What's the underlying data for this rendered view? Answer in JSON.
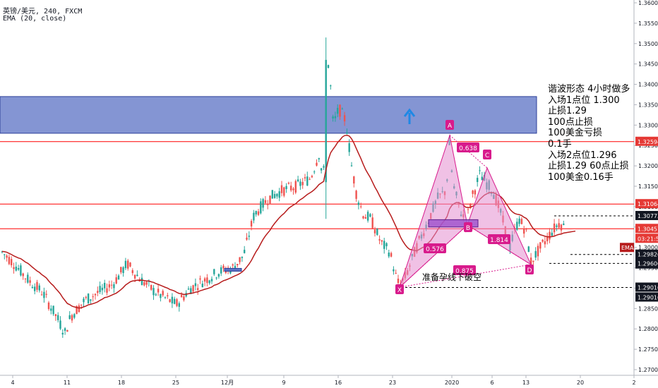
{
  "header": {
    "symbol": "英镑/美元, 240, FXCM",
    "indicator": "EMA (20, close)"
  },
  "annotation": {
    "lines": [
      "谐波形态 4小时做多",
      "入场1点位 1.300",
      "止损1.29",
      "100点止损",
      "100美金亏损",
      "0.1手",
      "入场2点位1.296",
      "止损1.29  60点止损",
      "100美金0.16手"
    ],
    "note": "准备孕线下破空"
  },
  "colors": {
    "up": "#26a69a",
    "down": "#ef5350",
    "ema": "#b71c1c",
    "zone": "#5b72c4",
    "pattern": "#e48ed0",
    "pattern_label": "#d81b8c",
    "hline": "#ff0000",
    "axis_text": "#131722"
  },
  "chart_data": {
    "type": "candlestick",
    "ylim": [
      1.27,
      1.36
    ],
    "y_ticks": [
      "1.36000",
      "1.35500",
      "1.35000",
      "1.34500",
      "1.34000",
      "1.33500",
      "1.33000",
      "1.32500",
      "1.32000",
      "1.31500",
      "1.31000",
      "1.30500",
      "1.30000",
      "1.29500",
      "1.29000",
      "1.28500",
      "1.28000",
      "1.27500",
      "1.27000"
    ],
    "x_ticks": [
      "4",
      "11",
      "18",
      "25",
      "12月",
      "9",
      "16",
      "23",
      "2020",
      "6",
      "13",
      "20",
      "2"
    ],
    "ema": {
      "name": "EMA",
      "period": 20
    },
    "price_labels": [
      {
        "value": 1.32594,
        "text": "1.32594",
        "style": "red"
      },
      {
        "value": 1.31064,
        "text": "1.31064",
        "style": "red"
      },
      {
        "value": 1.30773,
        "text": "1.30773",
        "style": "dark"
      },
      {
        "value": 1.30457,
        "text": "1.30457",
        "style": "red"
      },
      {
        "value": 1.30457,
        "text": "03:21:52",
        "style": "red",
        "offset": 1
      },
      {
        "value": 1.29826,
        "text": "1.29826",
        "style": "dark"
      },
      {
        "value": 1.29826,
        "text": "1.29826",
        "style": "dark",
        "offset": 1
      },
      {
        "value": 1.29606,
        "text": "1.29606",
        "style": "dark"
      },
      {
        "value": 1.29016,
        "text": "1.29016",
        "style": "dark"
      },
      {
        "value": 1.29016,
        "text": "1.29016",
        "style": "dark",
        "offset": 1
      }
    ],
    "ema_label": "EMA",
    "horizontal_lines": [
      1.32594,
      1.31064,
      1.30457
    ],
    "dashed_levels": [
      {
        "value": 1.30773,
        "from": 785
      },
      {
        "value": 1.29826,
        "from": 808
      },
      {
        "value": 1.29606,
        "from": 778
      },
      {
        "value": 1.29016,
        "from": 568
      }
    ],
    "zone": {
      "top": 1.337,
      "bottom": 1.328
    },
    "pattern_points": {
      "X": {
        "label": "X",
        "price": 1.2902
      },
      "A": {
        "label": "A",
        "price": 1.3275
      },
      "B": {
        "label": "B",
        "price": 1.3055
      },
      "C": {
        "label": "C",
        "price": 1.3195
      },
      "D": {
        "label": "D",
        "price": 1.2958
      }
    },
    "ratios": [
      "0.576",
      "0.638",
      "1.814",
      "0.875"
    ]
  }
}
